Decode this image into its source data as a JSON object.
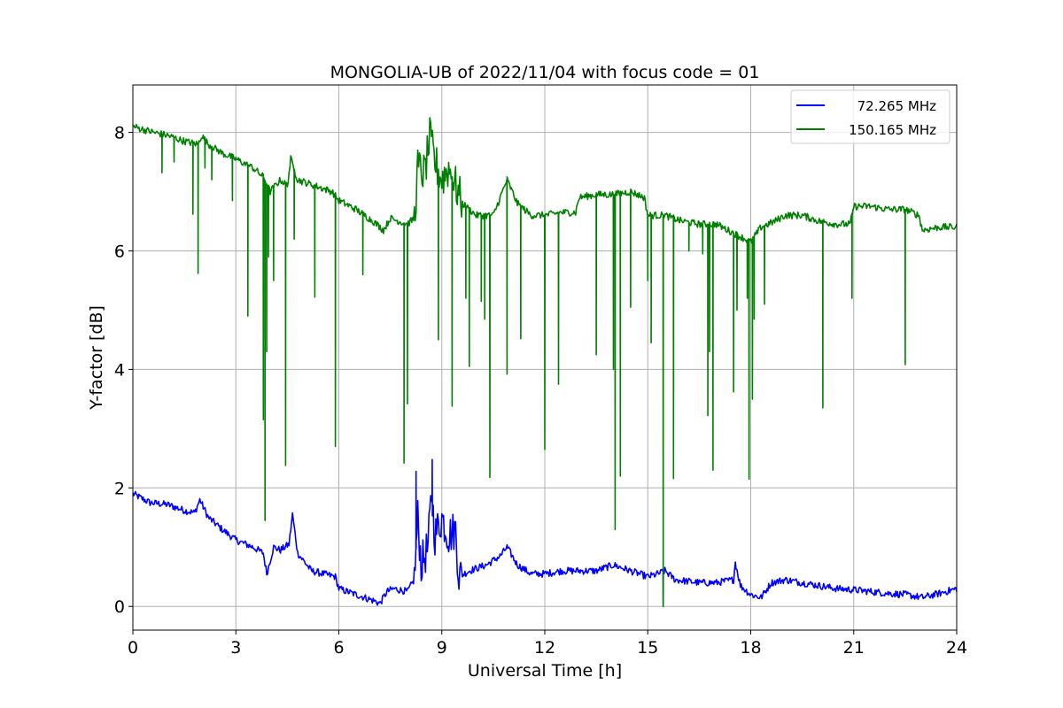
{
  "chart_data": {
    "type": "line",
    "title": "MONGOLIA-UB of 2022/11/04 with focus code = 01",
    "xlabel": "Universal Time [h]",
    "ylabel": "Y-factor [dB]",
    "xlim": [
      0,
      24
    ],
    "ylim": [
      -0.4,
      8.8
    ],
    "xticks": [
      0,
      3,
      6,
      9,
      12,
      15,
      18,
      21,
      24
    ],
    "yticks": [
      0,
      2,
      4,
      6,
      8
    ],
    "grid": true,
    "legend_position": "top-right",
    "series": [
      {
        "name": "72.265 MHz",
        "color": "#0000ff",
        "baseline": [
          [
            0,
            1.9
          ],
          [
            0.5,
            1.75
          ],
          [
            1.0,
            1.72
          ],
          [
            1.5,
            1.62
          ],
          [
            1.8,
            1.58
          ],
          [
            1.95,
            1.8
          ],
          [
            2.2,
            1.5
          ],
          [
            2.6,
            1.3
          ],
          [
            3.0,
            1.12
          ],
          [
            3.5,
            1.0
          ],
          [
            3.8,
            0.9
          ],
          [
            3.9,
            0.55
          ],
          [
            4.1,
            1.0
          ],
          [
            4.3,
            0.95
          ],
          [
            4.55,
            1.05
          ],
          [
            4.65,
            1.55
          ],
          [
            4.8,
            0.9
          ],
          [
            5.2,
            0.6
          ],
          [
            5.9,
            0.5
          ],
          [
            6.0,
            0.3
          ],
          [
            6.5,
            0.2
          ],
          [
            7.0,
            0.1
          ],
          [
            7.2,
            0.05
          ],
          [
            7.4,
            0.25
          ],
          [
            7.6,
            0.3
          ],
          [
            8.0,
            0.25
          ],
          [
            8.2,
            0.45
          ],
          [
            8.3,
            1.5
          ],
          [
            8.4,
            0.7
          ],
          [
            8.6,
            1.0
          ],
          [
            8.7,
            1.9
          ],
          [
            8.8,
            1.2
          ],
          [
            9.0,
            1.5
          ],
          [
            9.2,
            1.2
          ],
          [
            9.4,
            1.3
          ],
          [
            9.5,
            0.5
          ],
          [
            9.8,
            0.6
          ],
          [
            10.3,
            0.7
          ],
          [
            10.7,
            0.85
          ],
          [
            10.9,
            1.0
          ],
          [
            11.2,
            0.7
          ],
          [
            11.6,
            0.55
          ],
          [
            12.0,
            0.55
          ],
          [
            12.5,
            0.6
          ],
          [
            13.0,
            0.6
          ],
          [
            13.5,
            0.6
          ],
          [
            14.0,
            0.7
          ],
          [
            14.5,
            0.6
          ],
          [
            15.0,
            0.5
          ],
          [
            15.3,
            0.55
          ],
          [
            15.5,
            0.6
          ],
          [
            15.8,
            0.45
          ],
          [
            16.5,
            0.4
          ],
          [
            17.0,
            0.4
          ],
          [
            17.5,
            0.45
          ],
          [
            17.55,
            0.75
          ],
          [
            17.7,
            0.35
          ],
          [
            18.0,
            0.2
          ],
          [
            18.3,
            0.15
          ],
          [
            18.6,
            0.4
          ],
          [
            19.0,
            0.45
          ],
          [
            19.5,
            0.4
          ],
          [
            20.0,
            0.35
          ],
          [
            20.5,
            0.3
          ],
          [
            21.0,
            0.28
          ],
          [
            21.5,
            0.25
          ],
          [
            22.0,
            0.22
          ],
          [
            22.5,
            0.2
          ],
          [
            23.0,
            0.15
          ],
          [
            23.5,
            0.22
          ],
          [
            24.0,
            0.3
          ]
        ],
        "spikes": [
          [
            8.25,
            2.28
          ],
          [
            8.72,
            2.48
          ],
          [
            15.45,
            0.0
          ]
        ]
      },
      {
        "name": "150.165 MHz",
        "color": "#008000",
        "baseline": [
          [
            0,
            8.1
          ],
          [
            0.3,
            8.05
          ],
          [
            0.6,
            8.0
          ],
          [
            1.0,
            7.95
          ],
          [
            1.5,
            7.85
          ],
          [
            1.9,
            7.8
          ],
          [
            2.0,
            7.95
          ],
          [
            2.2,
            7.8
          ],
          [
            2.6,
            7.65
          ],
          [
            3.0,
            7.55
          ],
          [
            3.5,
            7.4
          ],
          [
            3.8,
            7.25
          ],
          [
            4.0,
            7.0
          ],
          [
            4.3,
            7.2
          ],
          [
            4.5,
            7.1
          ],
          [
            4.6,
            7.55
          ],
          [
            4.8,
            7.2
          ],
          [
            5.3,
            7.1
          ],
          [
            5.8,
            7.0
          ],
          [
            6.0,
            6.85
          ],
          [
            6.5,
            6.7
          ],
          [
            7.0,
            6.5
          ],
          [
            7.3,
            6.35
          ],
          [
            7.5,
            6.55
          ],
          [
            8.0,
            6.45
          ],
          [
            8.2,
            6.55
          ],
          [
            8.3,
            7.4
          ],
          [
            8.5,
            7.3
          ],
          [
            8.65,
            7.9
          ],
          [
            8.8,
            7.5
          ],
          [
            9.0,
            7.2
          ],
          [
            9.2,
            7.4
          ],
          [
            9.4,
            7.1
          ],
          [
            9.6,
            6.8
          ],
          [
            10.0,
            6.6
          ],
          [
            10.5,
            6.6
          ],
          [
            10.9,
            7.2
          ],
          [
            11.2,
            6.8
          ],
          [
            11.6,
            6.6
          ],
          [
            12.0,
            6.6
          ],
          [
            12.5,
            6.65
          ],
          [
            12.9,
            6.65
          ],
          [
            13.0,
            6.9
          ],
          [
            13.5,
            6.95
          ],
          [
            14.0,
            6.95
          ],
          [
            14.5,
            7.0
          ],
          [
            14.9,
            6.9
          ],
          [
            15.0,
            6.6
          ],
          [
            15.5,
            6.6
          ],
          [
            16.0,
            6.5
          ],
          [
            16.5,
            6.45
          ],
          [
            17.0,
            6.45
          ],
          [
            17.5,
            6.3
          ],
          [
            18.0,
            6.15
          ],
          [
            18.3,
            6.4
          ],
          [
            18.7,
            6.5
          ],
          [
            19.0,
            6.6
          ],
          [
            19.5,
            6.6
          ],
          [
            20.0,
            6.5
          ],
          [
            20.5,
            6.45
          ],
          [
            20.9,
            6.45
          ],
          [
            21.0,
            6.75
          ],
          [
            21.5,
            6.75
          ],
          [
            22.0,
            6.7
          ],
          [
            22.5,
            6.7
          ],
          [
            22.9,
            6.6
          ],
          [
            23.0,
            6.35
          ],
          [
            23.5,
            6.4
          ],
          [
            24.0,
            6.4
          ]
        ],
        "spikes": [
          [
            0.85,
            7.32
          ],
          [
            1.2,
            7.5
          ],
          [
            1.75,
            6.62
          ],
          [
            1.9,
            5.62
          ],
          [
            2.1,
            7.4
          ],
          [
            2.3,
            7.2
          ],
          [
            2.9,
            6.85
          ],
          [
            3.35,
            4.9
          ],
          [
            3.8,
            3.15
          ],
          [
            3.85,
            1.45
          ],
          [
            3.9,
            4.3
          ],
          [
            3.95,
            5.9
          ],
          [
            4.1,
            5.5
          ],
          [
            4.45,
            2.38
          ],
          [
            4.7,
            6.2
          ],
          [
            5.3,
            5.22
          ],
          [
            5.9,
            2.7
          ],
          [
            6.7,
            5.6
          ],
          [
            7.9,
            2.42
          ],
          [
            8.0,
            3.42
          ],
          [
            8.9,
            4.5
          ],
          [
            9.3,
            3.38
          ],
          [
            9.7,
            5.2
          ],
          [
            9.8,
            4.05
          ],
          [
            10.15,
            5.15
          ],
          [
            10.25,
            4.85
          ],
          [
            10.4,
            2.18
          ],
          [
            10.9,
            3.92
          ],
          [
            11.3,
            4.52
          ],
          [
            12.0,
            2.65
          ],
          [
            12.4,
            3.75
          ],
          [
            13.5,
            4.25
          ],
          [
            14.0,
            4.0
          ],
          [
            14.05,
            1.3
          ],
          [
            14.2,
            2.2
          ],
          [
            14.5,
            5.05
          ],
          [
            15.0,
            5.5
          ],
          [
            15.1,
            4.45
          ],
          [
            15.45,
            0.0
          ],
          [
            15.75,
            2.16
          ],
          [
            16.2,
            6.0
          ],
          [
            16.6,
            5.95
          ],
          [
            16.75,
            3.22
          ],
          [
            16.8,
            4.3
          ],
          [
            16.9,
            2.3
          ],
          [
            17.5,
            3.62
          ],
          [
            17.6,
            5.0
          ],
          [
            17.9,
            5.2
          ],
          [
            17.95,
            2.15
          ],
          [
            18.05,
            3.5
          ],
          [
            18.1,
            4.85
          ],
          [
            18.4,
            5.1
          ],
          [
            20.1,
            3.35
          ],
          [
            20.95,
            5.2
          ],
          [
            22.5,
            4.08
          ]
        ]
      }
    ]
  }
}
